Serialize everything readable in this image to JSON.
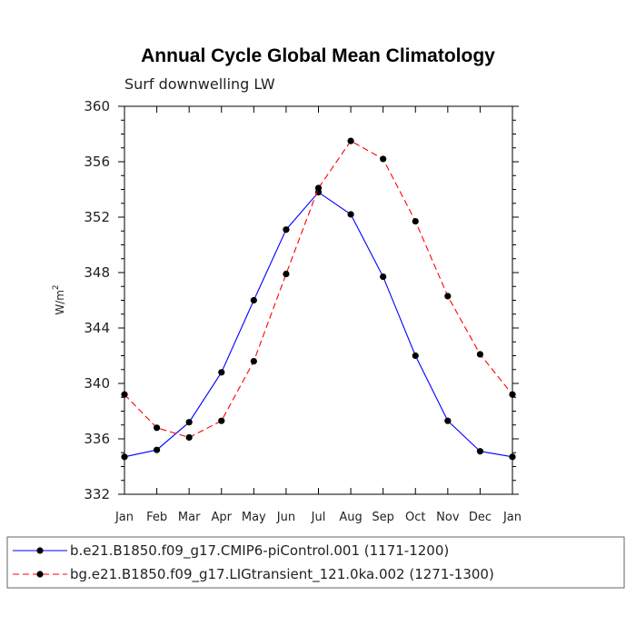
{
  "chart_data": {
    "type": "line",
    "title": "Annual Cycle Global Mean Climatology",
    "subtitle": "Surf downwelling LW",
    "ylabel_main": "W/m",
    "ylabel_sup": "2",
    "categories": [
      "Jan",
      "Feb",
      "Mar",
      "Apr",
      "May",
      "Jun",
      "Jul",
      "Aug",
      "Sep",
      "Oct",
      "Nov",
      "Dec",
      "Jan"
    ],
    "ylim": [
      332,
      360
    ],
    "yticks": [
      "332",
      "336",
      "340",
      "344",
      "348",
      "352",
      "356",
      "360"
    ],
    "series": [
      {
        "name": "b.e21.B1850.f09_g17.CMIP6-piControl.001 (1171-1200)",
        "color": "#0000ff",
        "dash": "solid",
        "values": [
          334.7,
          335.2,
          337.2,
          340.8,
          346.0,
          351.1,
          353.8,
          352.2,
          347.7,
          342.0,
          337.3,
          335.1,
          334.7
        ]
      },
      {
        "name": "bg.e21.B1850.f09_g17.LIGtransient_121.0ka.002 (1271-1300)",
        "color": "#ff0000",
        "dash": "dashed",
        "values": [
          339.2,
          336.8,
          336.1,
          337.3,
          341.6,
          347.9,
          354.1,
          357.5,
          356.2,
          351.7,
          346.3,
          342.1,
          339.2
        ]
      }
    ],
    "grid": false,
    "legend_position": "bottom"
  }
}
